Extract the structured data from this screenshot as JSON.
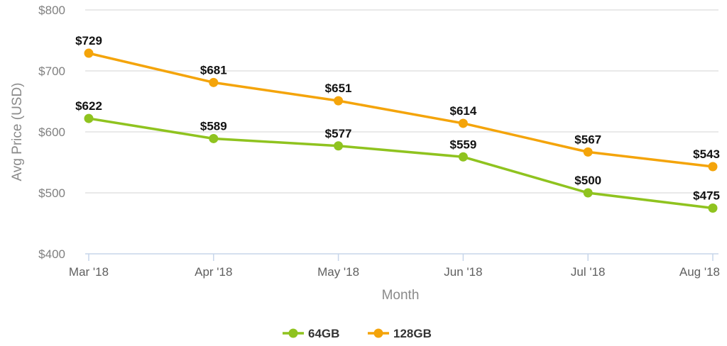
{
  "chart_data": {
    "type": "line",
    "categories": [
      "Mar '18",
      "Apr '18",
      "May '18",
      "Jun '18",
      "Jul '18",
      "Aug '18"
    ],
    "series": [
      {
        "name": "64GB",
        "color": "#8fc31f",
        "values": [
          622,
          589,
          577,
          559,
          500,
          475
        ]
      },
      {
        "name": "128GB",
        "color": "#f4a40a",
        "values": [
          729,
          681,
          651,
          614,
          567,
          543
        ]
      }
    ],
    "data_labels": {
      "64GB": [
        "$622",
        "$589",
        "$577",
        "$559",
        "$500",
        "$475"
      ],
      "128GB": [
        "$729",
        "$681",
        "$651",
        "$614",
        "$567",
        "$543"
      ]
    },
    "xlabel": "Month",
    "ylabel": "Avg Price (USD)",
    "ylim": [
      400,
      800
    ],
    "yticks": [
      400,
      500,
      600,
      700,
      800
    ],
    "ytick_labels": [
      "$400",
      "$500",
      "$600",
      "$700",
      "$800"
    ],
    "grid": "horizontal",
    "legend": "bottom-center"
  }
}
